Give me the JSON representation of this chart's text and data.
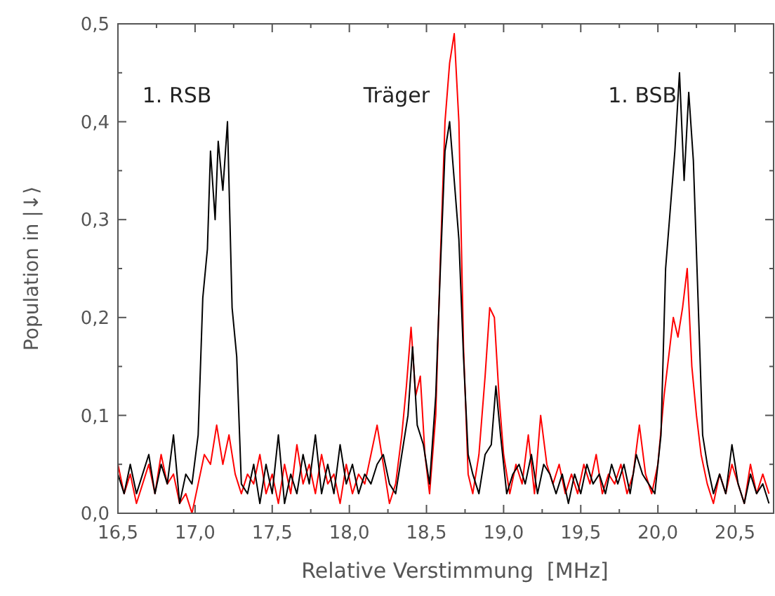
{
  "chart_data": {
    "type": "line",
    "xlabel": "Relative Verstimmung  [MHz]",
    "ylabel": "Population in |↓⟩",
    "xlim": [
      16.5,
      20.75
    ],
    "ylim": [
      0,
      0.5
    ],
    "xticks": [
      {
        "value": 16.5,
        "label": "16,5"
      },
      {
        "value": 16.75,
        "label": null
      },
      {
        "value": 17,
        "label": "17,0"
      },
      {
        "value": 17.25,
        "label": null
      },
      {
        "value": 17.5,
        "label": "17,5"
      },
      {
        "value": 17.75,
        "label": null
      },
      {
        "value": 18,
        "label": "18,0"
      },
      {
        "value": 18.25,
        "label": null
      },
      {
        "value": 18.5,
        "label": "18,5"
      },
      {
        "value": 18.75,
        "label": null
      },
      {
        "value": 19,
        "label": "19,0"
      },
      {
        "value": 19.25,
        "label": null
      },
      {
        "value": 19.5,
        "label": "19,5"
      },
      {
        "value": 19.75,
        "label": null
      },
      {
        "value": 20,
        "label": "20,0"
      },
      {
        "value": 20.25,
        "label": null
      },
      {
        "value": 20.5,
        "label": "20,5"
      }
    ],
    "yticks": [
      {
        "value": 0,
        "label": "0,0"
      },
      {
        "value": 0.05,
        "label": null
      },
      {
        "value": 0.1,
        "label": "0,1"
      },
      {
        "value": 0.15,
        "label": null
      },
      {
        "value": 0.2,
        "label": "0,2"
      },
      {
        "value": 0.25,
        "label": null
      },
      {
        "value": 0.3,
        "label": "0,3"
      },
      {
        "value": 0.35,
        "label": null
      },
      {
        "value": 0.4,
        "label": "0,4"
      },
      {
        "value": 0.45,
        "label": null
      },
      {
        "value": 0.5,
        "label": "0,5"
      }
    ],
    "grid": false,
    "line_style": "solid",
    "annotations": [
      "1. RSB",
      "Träger",
      "1. BSB"
    ],
    "series": [
      {
        "color": "#ff0000",
        "x": [
          16.5,
          16.54,
          16.58,
          16.62,
          16.66,
          16.7,
          16.74,
          16.78,
          16.82,
          16.86,
          16.9,
          16.94,
          16.98,
          17.02,
          17.06,
          17.1,
          17.14,
          17.18,
          17.22,
          17.26,
          17.3,
          17.34,
          17.38,
          17.42,
          17.46,
          17.5,
          17.54,
          17.58,
          17.62,
          17.66,
          17.7,
          17.74,
          17.78,
          17.82,
          17.86,
          17.9,
          17.94,
          17.98,
          18.02,
          18.06,
          18.1,
          18.14,
          18.18,
          18.22,
          18.26,
          18.3,
          18.34,
          18.37,
          18.4,
          18.43,
          18.46,
          18.49,
          18.52,
          18.56,
          18.59,
          18.62,
          18.65,
          18.68,
          18.71,
          18.74,
          18.77,
          18.8,
          18.84,
          18.88,
          18.91,
          18.94,
          18.97,
          19.0,
          19.04,
          19.08,
          19.12,
          19.16,
          19.2,
          19.24,
          19.28,
          19.32,
          19.36,
          19.4,
          19.44,
          19.48,
          19.52,
          19.56,
          19.6,
          19.64,
          19.68,
          19.72,
          19.76,
          19.8,
          19.84,
          19.88,
          19.92,
          19.96,
          20.0,
          20.04,
          20.07,
          20.1,
          20.13,
          20.16,
          20.19,
          20.22,
          20.25,
          20.28,
          20.32,
          20.36,
          20.4,
          20.44,
          20.48,
          20.52,
          20.56,
          20.6,
          20.64,
          20.68,
          20.72
        ],
        "values": [
          0.05,
          0.02,
          0.04,
          0.01,
          0.03,
          0.05,
          0.02,
          0.06,
          0.03,
          0.04,
          0.01,
          0.02,
          0.0,
          0.03,
          0.06,
          0.05,
          0.09,
          0.05,
          0.08,
          0.04,
          0.02,
          0.04,
          0.03,
          0.06,
          0.02,
          0.04,
          0.01,
          0.05,
          0.02,
          0.07,
          0.03,
          0.05,
          0.02,
          0.06,
          0.03,
          0.04,
          0.01,
          0.05,
          0.02,
          0.04,
          0.03,
          0.06,
          0.09,
          0.05,
          0.01,
          0.03,
          0.08,
          0.13,
          0.19,
          0.12,
          0.14,
          0.06,
          0.02,
          0.1,
          0.26,
          0.4,
          0.46,
          0.49,
          0.4,
          0.17,
          0.04,
          0.02,
          0.06,
          0.14,
          0.21,
          0.2,
          0.12,
          0.06,
          0.02,
          0.05,
          0.03,
          0.08,
          0.02,
          0.1,
          0.05,
          0.03,
          0.05,
          0.02,
          0.04,
          0.02,
          0.05,
          0.03,
          0.06,
          0.02,
          0.04,
          0.03,
          0.05,
          0.02,
          0.04,
          0.09,
          0.04,
          0.02,
          0.05,
          0.12,
          0.16,
          0.2,
          0.18,
          0.21,
          0.25,
          0.15,
          0.1,
          0.06,
          0.03,
          0.01,
          0.04,
          0.02,
          0.05,
          0.03,
          0.01,
          0.05,
          0.02,
          0.04,
          0.02
        ]
      },
      {
        "color": "#000000",
        "x": [
          16.5,
          16.54,
          16.58,
          16.62,
          16.66,
          16.7,
          16.74,
          16.78,
          16.82,
          16.86,
          16.9,
          16.94,
          16.98,
          17.02,
          17.05,
          17.08,
          17.1,
          17.13,
          17.15,
          17.18,
          17.21,
          17.24,
          17.27,
          17.3,
          17.34,
          17.38,
          17.42,
          17.46,
          17.5,
          17.54,
          17.58,
          17.62,
          17.66,
          17.7,
          17.74,
          17.78,
          17.82,
          17.86,
          17.9,
          17.94,
          17.98,
          18.02,
          18.06,
          18.1,
          18.14,
          18.18,
          18.22,
          18.26,
          18.3,
          18.34,
          18.38,
          18.41,
          18.44,
          18.48,
          18.52,
          18.56,
          18.59,
          18.62,
          18.65,
          18.68,
          18.71,
          18.74,
          18.77,
          18.8,
          18.84,
          18.88,
          18.92,
          18.95,
          18.98,
          19.02,
          19.06,
          19.1,
          19.14,
          19.18,
          19.22,
          19.26,
          19.3,
          19.34,
          19.38,
          19.42,
          19.46,
          19.5,
          19.54,
          19.58,
          19.62,
          19.66,
          19.7,
          19.74,
          19.78,
          19.82,
          19.86,
          19.9,
          19.94,
          19.98,
          20.02,
          20.05,
          20.08,
          20.11,
          20.14,
          20.17,
          20.2,
          20.23,
          20.26,
          20.29,
          20.32,
          20.36,
          20.4,
          20.44,
          20.48,
          20.52,
          20.56,
          20.6,
          20.64,
          20.68,
          20.72
        ],
        "values": [
          0.04,
          0.02,
          0.05,
          0.02,
          0.04,
          0.06,
          0.02,
          0.05,
          0.03,
          0.08,
          0.01,
          0.04,
          0.03,
          0.08,
          0.22,
          0.27,
          0.37,
          0.3,
          0.38,
          0.33,
          0.4,
          0.21,
          0.16,
          0.03,
          0.02,
          0.05,
          0.01,
          0.05,
          0.02,
          0.08,
          0.01,
          0.04,
          0.02,
          0.06,
          0.03,
          0.08,
          0.02,
          0.05,
          0.02,
          0.07,
          0.03,
          0.05,
          0.02,
          0.04,
          0.03,
          0.05,
          0.06,
          0.03,
          0.02,
          0.06,
          0.1,
          0.17,
          0.09,
          0.07,
          0.03,
          0.12,
          0.25,
          0.37,
          0.4,
          0.34,
          0.28,
          0.16,
          0.06,
          0.04,
          0.02,
          0.06,
          0.07,
          0.13,
          0.08,
          0.02,
          0.04,
          0.05,
          0.03,
          0.06,
          0.02,
          0.05,
          0.04,
          0.02,
          0.04,
          0.01,
          0.04,
          0.02,
          0.05,
          0.03,
          0.04,
          0.02,
          0.05,
          0.03,
          0.05,
          0.02,
          0.06,
          0.04,
          0.03,
          0.02,
          0.08,
          0.25,
          0.31,
          0.37,
          0.45,
          0.34,
          0.43,
          0.36,
          0.22,
          0.08,
          0.05,
          0.02,
          0.04,
          0.02,
          0.07,
          0.03,
          0.01,
          0.04,
          0.02,
          0.03,
          0.01
        ]
      }
    ]
  }
}
